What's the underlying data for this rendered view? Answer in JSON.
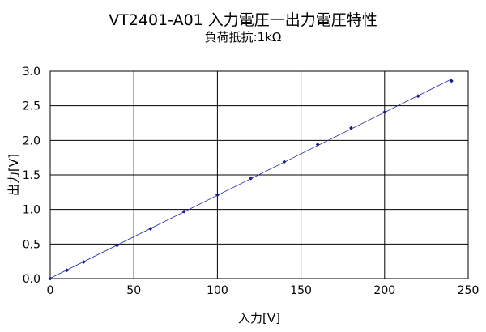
{
  "chart_data": {
    "type": "scatter",
    "title": "VT2401-A01 入力電圧ー出力電圧特性",
    "subtitle": "負荷抵抗:1kΩ",
    "xlabel": "入力[V]",
    "ylabel": "出力[V]",
    "xlim": [
      0,
      250
    ],
    "ylim": [
      0,
      3.0
    ],
    "xticks": [
      "0",
      "50",
      "100",
      "150",
      "200",
      "250"
    ],
    "yticks": [
      "0.0",
      "0.5",
      "1.0",
      "1.5",
      "2.0",
      "2.5",
      "3.0"
    ],
    "grid": true,
    "legend": "none",
    "series_color": "#1a1a8c",
    "trendline": "linear",
    "series": [
      {
        "x": [
          0,
          10,
          20,
          40,
          60,
          80,
          100,
          120,
          140,
          160,
          180,
          200,
          220,
          240
        ],
        "y": [
          0.0,
          0.12,
          0.24,
          0.48,
          0.72,
          0.97,
          1.21,
          1.45,
          1.69,
          1.94,
          2.18,
          2.41,
          2.64,
          2.86
        ]
      }
    ]
  }
}
